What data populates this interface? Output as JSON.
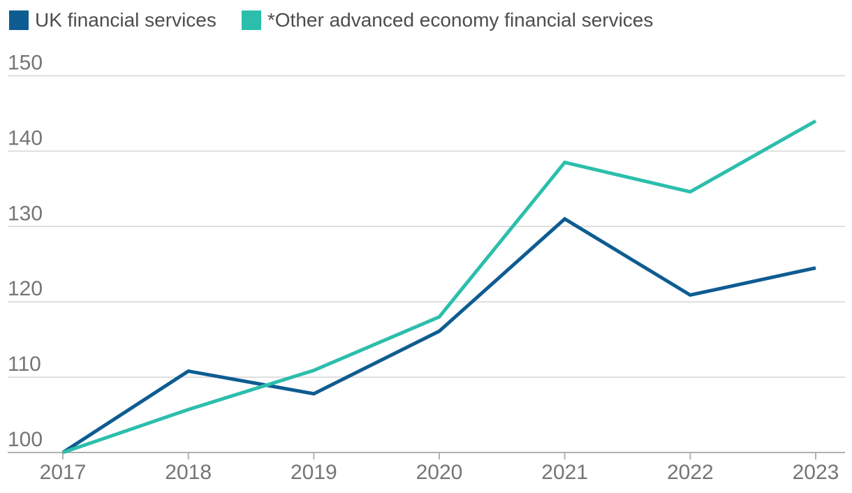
{
  "chart_data": {
    "type": "line",
    "x": [
      "2017",
      "2018",
      "2019",
      "2020",
      "2021",
      "2022",
      "2023"
    ],
    "series": [
      {
        "name": "UK financial services",
        "color": "#0e5c92",
        "values": [
          100,
          110.8,
          107.8,
          116.1,
          131,
          120.9,
          124.5
        ]
      },
      {
        "name": "*Other advanced economy financial services",
        "color": "#2cbeac",
        "values": [
          100,
          105.7,
          110.9,
          118,
          138.5,
          134.6,
          144
        ]
      }
    ],
    "yticks": [
      100,
      110,
      120,
      130,
      140,
      150
    ],
    "ylim": [
      99.8,
      150.2
    ],
    "grid": true,
    "legend_position": "top-left"
  },
  "style": {
    "background": "#ffffff",
    "grid_color": "#d4d4d4",
    "axis_color": "#b1b1b1",
    "tick_label_color": "#757575",
    "legend_text_color": "#4d4d4d",
    "line_width": 5
  }
}
